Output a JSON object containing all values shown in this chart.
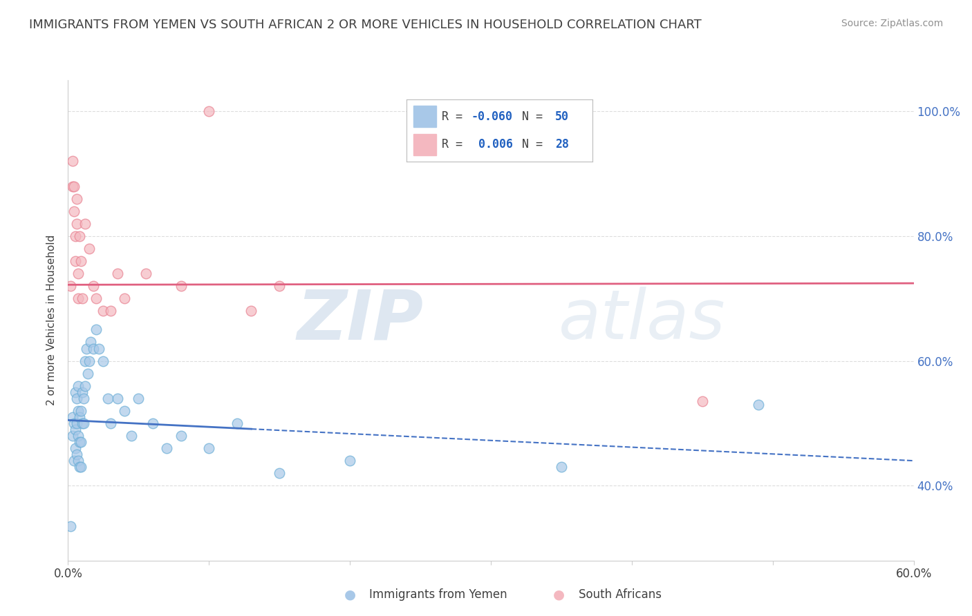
{
  "title": "IMMIGRANTS FROM YEMEN VS SOUTH AFRICAN 2 OR MORE VEHICLES IN HOUSEHOLD CORRELATION CHART",
  "source": "Source: ZipAtlas.com",
  "xlabel_blue": "Immigrants from Yemen",
  "xlabel_pink": "South Africans",
  "ylabel": "2 or more Vehicles in Household",
  "xlim": [
    0.0,
    0.6
  ],
  "ylim": [
    0.28,
    1.05
  ],
  "xticks": [
    0.0,
    0.1,
    0.2,
    0.3,
    0.4,
    0.5,
    0.6
  ],
  "xticklabels": [
    "0.0%",
    "",
    "",
    "",
    "",
    "",
    "60.0%"
  ],
  "yticks": [
    0.4,
    0.6,
    0.8,
    1.0
  ],
  "yticklabels_right": [
    "40.0%",
    "60.0%",
    "80.0%",
    "100.0%"
  ],
  "blue_color": "#a8c8e8",
  "blue_edge": "#6baed6",
  "pink_color": "#f4b8c0",
  "pink_edge": "#e88090",
  "blue_line_color": "#4472c4",
  "pink_line_color": "#e06080",
  "R_blue": -0.06,
  "N_blue": 50,
  "R_pink": 0.006,
  "N_pink": 28,
  "blue_line_start_y": 0.505,
  "blue_line_end_y": 0.44,
  "blue_line_solid_end_x": 0.13,
  "pink_line_y": 0.722,
  "pink_line_slope": 0.004,
  "pink_line_end_x": 0.6,
  "blue_scatter_x": [
    0.002,
    0.003,
    0.003,
    0.004,
    0.004,
    0.005,
    0.005,
    0.005,
    0.006,
    0.006,
    0.006,
    0.007,
    0.007,
    0.007,
    0.007,
    0.008,
    0.008,
    0.008,
    0.009,
    0.009,
    0.009,
    0.01,
    0.01,
    0.011,
    0.011,
    0.012,
    0.012,
    0.013,
    0.014,
    0.015,
    0.016,
    0.018,
    0.02,
    0.022,
    0.025,
    0.028,
    0.03,
    0.035,
    0.04,
    0.045,
    0.05,
    0.06,
    0.07,
    0.08,
    0.1,
    0.12,
    0.15,
    0.2,
    0.35,
    0.49
  ],
  "blue_scatter_y": [
    0.335,
    0.48,
    0.51,
    0.44,
    0.5,
    0.46,
    0.49,
    0.55,
    0.45,
    0.5,
    0.54,
    0.44,
    0.48,
    0.52,
    0.56,
    0.43,
    0.47,
    0.51,
    0.43,
    0.47,
    0.52,
    0.5,
    0.55,
    0.5,
    0.54,
    0.56,
    0.6,
    0.62,
    0.58,
    0.6,
    0.63,
    0.62,
    0.65,
    0.62,
    0.6,
    0.54,
    0.5,
    0.54,
    0.52,
    0.48,
    0.54,
    0.5,
    0.46,
    0.48,
    0.46,
    0.5,
    0.42,
    0.44,
    0.43,
    0.53
  ],
  "pink_scatter_x": [
    0.002,
    0.003,
    0.003,
    0.004,
    0.004,
    0.005,
    0.005,
    0.006,
    0.006,
    0.007,
    0.007,
    0.008,
    0.009,
    0.01,
    0.012,
    0.015,
    0.018,
    0.02,
    0.025,
    0.03,
    0.035,
    0.04,
    0.055,
    0.08,
    0.1,
    0.13,
    0.15,
    0.45
  ],
  "pink_scatter_y": [
    0.72,
    0.88,
    0.92,
    0.84,
    0.88,
    0.76,
    0.8,
    0.82,
    0.86,
    0.7,
    0.74,
    0.8,
    0.76,
    0.7,
    0.82,
    0.78,
    0.72,
    0.7,
    0.68,
    0.68,
    0.74,
    0.7,
    0.74,
    0.72,
    1.0,
    0.68,
    0.72,
    0.535
  ],
  "watermark_zip": "ZIP",
  "watermark_atlas": "atlas",
  "background_color": "#ffffff",
  "grid_color": "#dddddd",
  "title_color": "#404040",
  "source_color": "#909090",
  "right_tick_color": "#4472c4"
}
